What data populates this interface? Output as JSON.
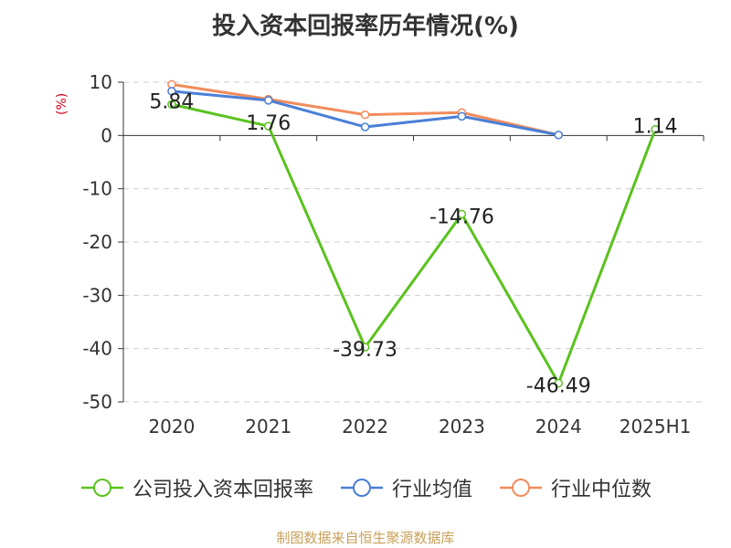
{
  "title": "投入资本回报率历年情况(%)",
  "unit_label": "(%)",
  "source": "制图数据来自恒生聚源数据库",
  "chart_data": {
    "type": "line",
    "title": "投入资本回报率历年情况(%)",
    "categories": [
      "2020",
      "2021",
      "2022",
      "2023",
      "2024",
      "2025H1"
    ],
    "ylim": [
      -50,
      10
    ],
    "yticks": [
      10,
      0,
      -10,
      -20,
      -30,
      -40,
      -50
    ],
    "grid": true,
    "legend_position": "bottom",
    "series": [
      {
        "name": "公司投入资本回报率",
        "color": "#5ac21e",
        "values": [
          5.84,
          1.76,
          -39.73,
          -14.76,
          -46.49,
          1.14
        ],
        "labels": [
          "5.84",
          "1.76",
          "-39.73",
          "-14.76",
          "-46.49",
          "1.14"
        ]
      },
      {
        "name": "行业均值",
        "color": "#4a7fd6",
        "values": [
          8.3,
          6.6,
          1.6,
          3.6,
          0.1,
          null
        ]
      },
      {
        "name": "行业中位数",
        "color": "#f28c5c",
        "values": [
          9.6,
          6.8,
          3.9,
          4.3,
          0.1,
          null
        ]
      }
    ]
  }
}
